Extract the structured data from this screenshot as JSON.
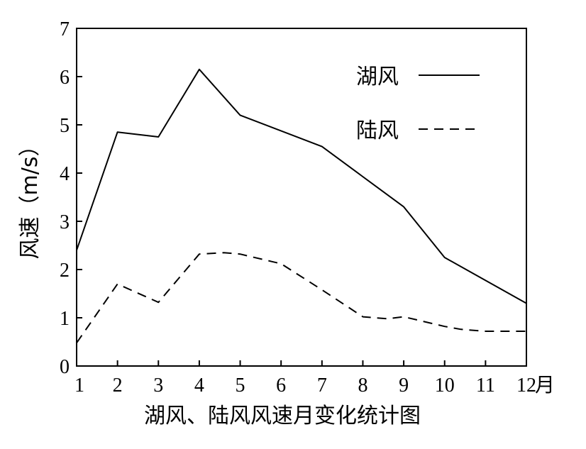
{
  "chart_data": {
    "type": "line",
    "title": "湖风、陆风风速月变化统计图",
    "xlabel": "",
    "x_unit": "月",
    "ylabel": "风速（m/s）",
    "xlim": [
      1,
      12
    ],
    "ylim": [
      0,
      7
    ],
    "x_ticks": [
      1,
      2,
      3,
      4,
      5,
      6,
      7,
      8,
      9,
      10,
      11,
      12
    ],
    "y_ticks": [
      0,
      1,
      2,
      3,
      4,
      5,
      6,
      7
    ],
    "grid": false,
    "legend_position": "top-right",
    "series": [
      {
        "name": "湖风",
        "style": "solid",
        "color": "#000000",
        "x": [
          1,
          2,
          3,
          4,
          5,
          7,
          9,
          10,
          12
        ],
        "y": [
          2.4,
          4.85,
          4.75,
          6.15,
          5.2,
          4.55,
          3.3,
          2.25,
          1.3
        ]
      },
      {
        "name": "陆风",
        "style": "dashed",
        "color": "#000000",
        "x": [
          1,
          2,
          3,
          4,
          4.6,
          5,
          6,
          7,
          8,
          8.6,
          9,
          10,
          10.4,
          11,
          12
        ],
        "y": [
          0.48,
          1.7,
          1.32,
          2.32,
          2.35,
          2.32,
          2.12,
          1.58,
          1.02,
          0.98,
          1.02,
          0.82,
          0.76,
          0.72,
          0.72
        ]
      }
    ]
  }
}
